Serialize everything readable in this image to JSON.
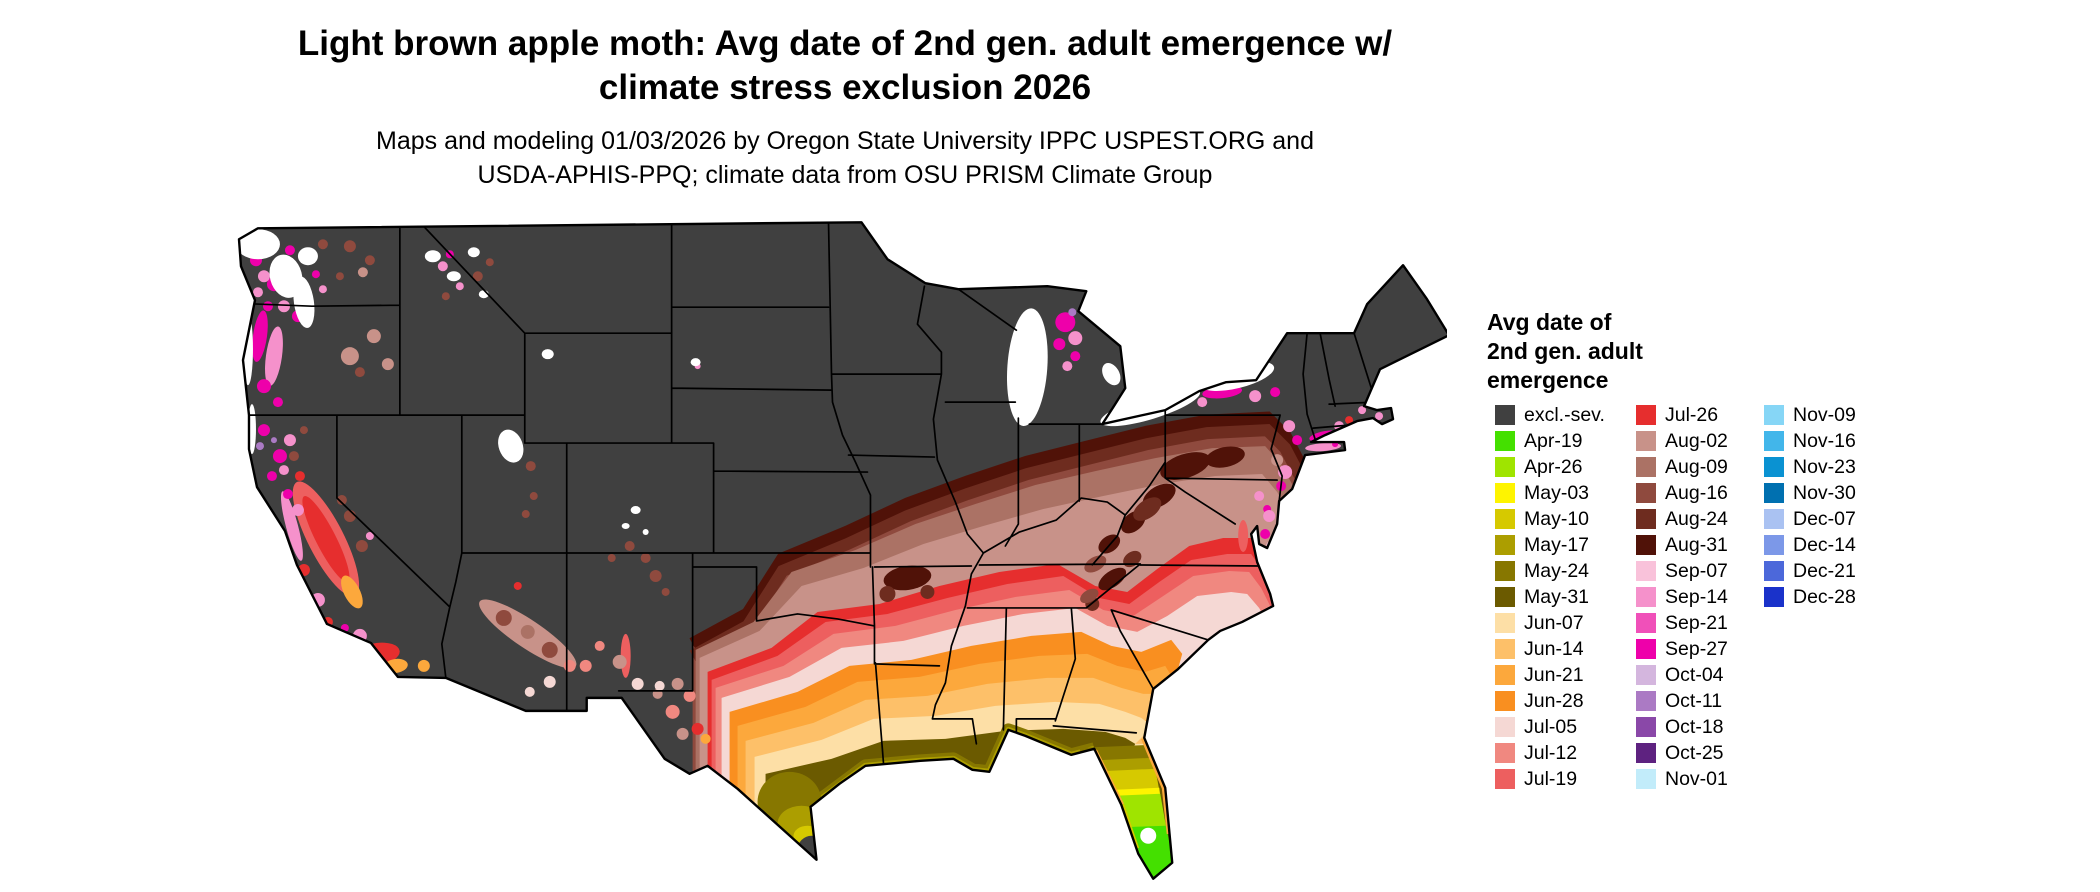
{
  "title": {
    "line1": "Light brown apple moth: Avg date of 2nd gen. adult emergence w/",
    "line2": "climate stress exclusion 2026"
  },
  "subtitle": {
    "line1": "Maps and modeling 01/03/2026 by Oregon State University IPPC USPEST.ORG and",
    "line2": "USDA-APHIS-PPQ; climate data from OSU PRISM Climate Group"
  },
  "legend": {
    "title_lines": [
      "Avg date of",
      "2nd gen. adult",
      "emergence"
    ],
    "columns": [
      [
        {
          "id": "excl",
          "label": "excl.-sev.",
          "color": "#404040"
        },
        {
          "id": "apr19",
          "label": "Apr-19",
          "color": "#44e000"
        },
        {
          "id": "apr26",
          "label": "Apr-26",
          "color": "#9fe400"
        },
        {
          "id": "may03",
          "label": "May-03",
          "color": "#fef400"
        },
        {
          "id": "may10",
          "label": "May-10",
          "color": "#d6c900"
        },
        {
          "id": "may17",
          "label": "May-17",
          "color": "#ac9e00"
        },
        {
          "id": "may24",
          "label": "May-24",
          "color": "#877700"
        },
        {
          "id": "may31",
          "label": "May-31",
          "color": "#6b5a00"
        },
        {
          "id": "jun07",
          "label": "Jun-07",
          "color": "#fddfa6"
        },
        {
          "id": "jun14",
          "label": "Jun-14",
          "color": "#fdc069"
        },
        {
          "id": "jun21",
          "label": "Jun-21",
          "color": "#fca83c"
        },
        {
          "id": "jun28",
          "label": "Jun-28",
          "color": "#f98f20"
        },
        {
          "id": "jul05",
          "label": "Jul-05",
          "color": "#f5d8d4"
        },
        {
          "id": "jul12",
          "label": "Jul-12",
          "color": "#f08880"
        },
        {
          "id": "jul19",
          "label": "Jul-19",
          "color": "#ed5f5f"
        }
      ],
      [
        {
          "id": "jul26",
          "label": "Jul-26",
          "color": "#e62e2e"
        },
        {
          "id": "aug02",
          "label": "Aug-02",
          "color": "#c89289"
        },
        {
          "id": "aug09",
          "label": "Aug-09",
          "color": "#ab7265"
        },
        {
          "id": "aug16",
          "label": "Aug-16",
          "color": "#8f4a3e"
        },
        {
          "id": "aug24",
          "label": "Aug-24",
          "color": "#6e2c1f"
        },
        {
          "id": "aug31",
          "label": "Aug-31",
          "color": "#501208"
        },
        {
          "id": "sep07",
          "label": "Sep-07",
          "color": "#f9c2da"
        },
        {
          "id": "sep14",
          "label": "Sep-14",
          "color": "#f591cb"
        },
        {
          "id": "sep21",
          "label": "Sep-21",
          "color": "#f050b9"
        },
        {
          "id": "sep27",
          "label": "Sep-27",
          "color": "#ee00aa"
        },
        {
          "id": "oct04",
          "label": "Oct-04",
          "color": "#d4b6de"
        },
        {
          "id": "oct11",
          "label": "Oct-11",
          "color": "#ab7ac4"
        },
        {
          "id": "oct18",
          "label": "Oct-18",
          "color": "#8a48a8"
        },
        {
          "id": "oct25",
          "label": "Oct-25",
          "color": "#5e2280"
        },
        {
          "id": "nov01",
          "label": "Nov-01",
          "color": "#c2ecfa"
        }
      ],
      [
        {
          "id": "nov09",
          "label": "Nov-09",
          "color": "#86d6f6"
        },
        {
          "id": "nov16",
          "label": "Nov-16",
          "color": "#42b6ea"
        },
        {
          "id": "nov23",
          "label": "Nov-23",
          "color": "#0a92d2"
        },
        {
          "id": "nov30",
          "label": "Nov-30",
          "color": "#0070b0"
        },
        {
          "id": "dec07",
          "label": "Dec-07",
          "color": "#aac2f2"
        },
        {
          "id": "dec14",
          "label": "Dec-14",
          "color": "#7c98e8"
        },
        {
          "id": "dec21",
          "label": "Dec-21",
          "color": "#4c68da"
        },
        {
          "id": "dec28",
          "label": "Dec-28",
          "color": "#1a32ca"
        }
      ]
    ]
  },
  "map": {
    "water_color": "#ffffff",
    "border_color": "#000000"
  }
}
